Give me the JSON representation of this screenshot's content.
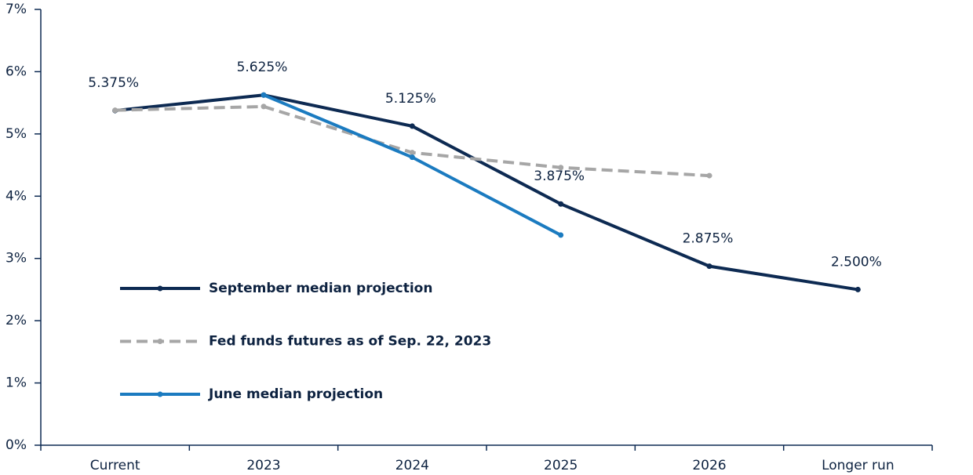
{
  "chart_data": {
    "type": "line",
    "categories": [
      "Current",
      "2023",
      "2024",
      "2025",
      "2026",
      "Longer run"
    ],
    "series": [
      {
        "name": "September median projection",
        "color": "#0d2a52",
        "dash": false,
        "values": [
          5.375,
          5.625,
          5.125,
          3.875,
          2.875,
          2.5
        ],
        "value_labels": [
          "5.375%",
          "5.625%",
          "5.125%",
          "3.875%",
          "2.875%",
          "2.500%"
        ]
      },
      {
        "name": "Fed funds futures as of Sep. 22, 2023",
        "color": "#a6a6a6",
        "dash": true,
        "values": [
          5.38,
          5.44,
          4.7,
          4.46,
          4.33,
          null
        ]
      },
      {
        "name": "June median projection",
        "color": "#1b7bc0",
        "dash": false,
        "values": [
          null,
          5.625,
          4.625,
          3.375,
          null,
          null
        ]
      }
    ],
    "ylim": [
      0,
      7
    ],
    "yticks": [
      {
        "value": 0,
        "label": "0%"
      },
      {
        "value": 1,
        "label": "1%"
      },
      {
        "value": 2,
        "label": "2%"
      },
      {
        "value": 3,
        "label": "3%"
      },
      {
        "value": 4,
        "label": "4%"
      },
      {
        "value": 5,
        "label": "5%"
      },
      {
        "value": 6,
        "label": "6%"
      },
      {
        "value": 7,
        "label": "7%"
      }
    ],
    "legend": "left"
  }
}
